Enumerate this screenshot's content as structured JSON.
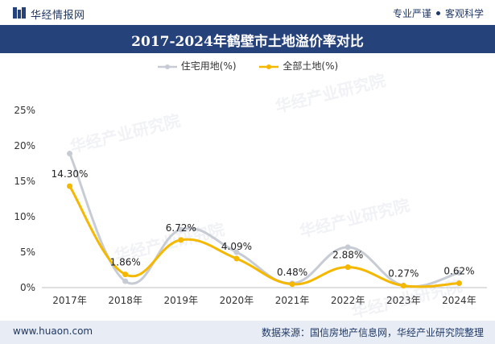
{
  "header": {
    "brand": "华经情报网",
    "tagline_left": "专业严谨",
    "tagline_right": "客观科学"
  },
  "title": "2017-2024年鹤壁市土地溢价率对比",
  "footer": {
    "site": "www.huaon.com",
    "source": "数据来源：国信房地产信息网，华经产业研究院整理"
  },
  "watermark": "华经产业研究院",
  "colors": {
    "title_bar": "#26427a",
    "residential": "#c7cbd4",
    "all_land": "#f5b800"
  },
  "chart_data": {
    "type": "line",
    "title": "2017-2024年鹤壁市土地溢价率对比",
    "categories": [
      "2017年",
      "2018年",
      "2019年",
      "2020年",
      "2021年",
      "2022年",
      "2023年",
      "2024年"
    ],
    "ylim": [
      0,
      25
    ],
    "yticks": [
      "0%",
      "5%",
      "10%",
      "15%",
      "20%",
      "25%"
    ],
    "grid": false,
    "legend": "top-center",
    "series": [
      {
        "name": "住宅用地(%)",
        "values": [
          18.9,
          0.9,
          8.2,
          5.0,
          0.6,
          5.7,
          0.3,
          2.1
        ],
        "labels": [
          "",
          "",
          "",
          "",
          "",
          "",
          "",
          ""
        ]
      },
      {
        "name": "全部土地(%)",
        "values": [
          14.3,
          1.86,
          6.72,
          4.09,
          0.48,
          2.88,
          0.27,
          0.62
        ],
        "labels": [
          "14.30%",
          "1.86%",
          "6.72%",
          "4.09%",
          "0.48%",
          "2.88%",
          "0.27%",
          "0.62%"
        ]
      }
    ]
  }
}
